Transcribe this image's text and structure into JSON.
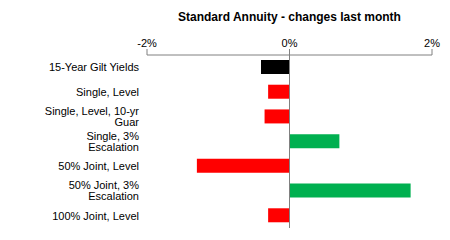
{
  "chart_data": {
    "type": "bar",
    "title": "Standard Annuity - changes last month",
    "orientation": "horizontal",
    "categories": [
      "15-Year Gilt Yields",
      "Single, Level",
      "Single, Level, 10-yr Guar",
      "Single, 3% Escalation",
      "50% Joint, Level",
      "50% Joint, 3% Escalation",
      "100% Joint, Level"
    ],
    "values": [
      -0.4,
      -0.3,
      -0.35,
      0.7,
      -1.3,
      1.7,
      -0.3
    ],
    "colors": [
      "#000000",
      "#ff0000",
      "#ff0000",
      "#00b050",
      "#ff0000",
      "#00b050",
      "#ff0000"
    ],
    "xlim": [
      -2,
      2
    ],
    "xticks": [
      {
        "value": -2,
        "label": "-2%"
      },
      {
        "value": 0,
        "label": "0%"
      },
      {
        "value": 2,
        "label": "2%"
      }
    ],
    "grid": false,
    "data_labels": false
  }
}
